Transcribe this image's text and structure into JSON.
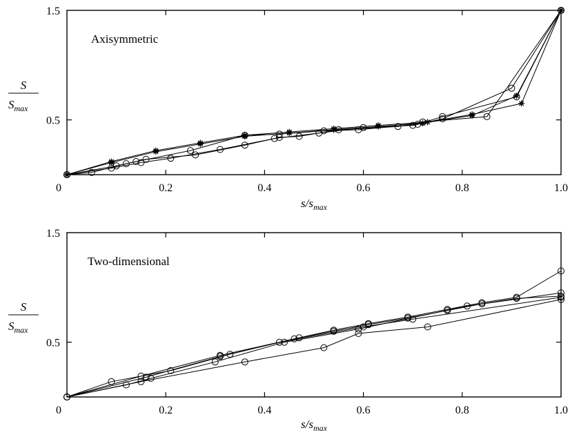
{
  "chart_data": [
    {
      "type": "line",
      "label": "Axisymmetric",
      "xlabel": {
        "main": "s/s",
        "sub": "max"
      },
      "ylabel": {
        "num": "S",
        "den_main": "S",
        "den_sub": "max"
      },
      "xlim": [
        0,
        1.0
      ],
      "ylim": [
        0,
        1.5
      ],
      "xticks": [
        0,
        0.2,
        0.4,
        0.6,
        0.8,
        1.0
      ],
      "xtick_labels": [
        "0",
        "0.2",
        "0.4",
        "0.6",
        "0.8",
        "1.0"
      ],
      "yticks": [
        0,
        0.5,
        1.5
      ],
      "ytick_labels": [
        "0",
        "0.5",
        "1.5"
      ],
      "grid": false,
      "series": [
        {
          "marker": "star",
          "x": [
            0,
            0.09,
            0.18,
            0.27,
            0.36,
            0.45,
            0.54,
            0.63,
            0.73,
            0.82,
            0.92,
            1.0
          ],
          "y": [
            0,
            0.12,
            0.22,
            0.29,
            0.36,
            0.39,
            0.42,
            0.45,
            0.48,
            0.55,
            0.65,
            1.5
          ]
        },
        {
          "marker": "star",
          "x": [
            0,
            0.09,
            0.18,
            0.27,
            0.36,
            0.45,
            0.54,
            0.63,
            0.72,
            0.82,
            0.91,
            1.0
          ],
          "y": [
            0,
            0.11,
            0.21,
            0.28,
            0.35,
            0.38,
            0.41,
            0.44,
            0.47,
            0.54,
            0.72,
            1.5
          ]
        },
        {
          "marker": "circle",
          "x": [
            0,
            0.1,
            0.14,
            0.25,
            0.36,
            0.43,
            0.52,
            0.59,
            0.71,
            0.76,
            0.91,
            1.0
          ],
          "y": [
            0,
            0.08,
            0.12,
            0.22,
            0.36,
            0.37,
            0.4,
            0.41,
            0.46,
            0.53,
            0.71,
            1.5
          ]
        },
        {
          "marker": "circle",
          "x": [
            0,
            0.09,
            0.15,
            0.21,
            0.31,
            0.42,
            0.51,
            0.6,
            0.7,
            0.76,
            0.9,
            1.0
          ],
          "y": [
            0,
            0.06,
            0.11,
            0.15,
            0.23,
            0.33,
            0.38,
            0.43,
            0.45,
            0.51,
            0.79,
            1.5
          ]
        },
        {
          "marker": "circle",
          "x": [
            0,
            0.05,
            0.12,
            0.16,
            0.26,
            0.36,
            0.43,
            0.47,
            0.55,
            0.67,
            0.72,
            0.85,
            1.0
          ],
          "y": [
            0,
            0.02,
            0.1,
            0.14,
            0.18,
            0.27,
            0.34,
            0.35,
            0.41,
            0.44,
            0.48,
            0.53,
            1.5
          ]
        }
      ]
    },
    {
      "type": "line",
      "label": "Two-dimensional",
      "xlabel": {
        "main": "s/s",
        "sub": "max"
      },
      "ylabel": {
        "num": "S",
        "den_main": "S",
        "den_sub": "max"
      },
      "xlim": [
        0,
        1.0
      ],
      "ylim": [
        0,
        1.5
      ],
      "xticks": [
        0,
        0.2,
        0.4,
        0.6,
        0.8,
        1.0
      ],
      "xtick_labels": [
        "0",
        "0.2",
        "0.4",
        "0.6",
        "0.8",
        "1.0"
      ],
      "yticks": [
        0,
        0.5,
        1.5
      ],
      "ytick_labels": [
        "0",
        "0.5",
        "1.5"
      ],
      "grid": false,
      "series": [
        {
          "marker": "circle",
          "x": [
            0,
            0.15,
            0.31,
            0.47,
            0.54,
            0.61,
            0.69,
            0.77,
            0.84,
            0.91,
            1.0
          ],
          "y": [
            0,
            0.19,
            0.38,
            0.54,
            0.61,
            0.67,
            0.73,
            0.8,
            0.86,
            0.91,
            1.15
          ]
        },
        {
          "marker": "circle",
          "x": [
            0,
            0.16,
            0.31,
            0.46,
            0.54,
            0.61,
            0.69,
            0.77,
            0.84,
            0.91,
            1.0
          ],
          "y": [
            0,
            0.18,
            0.37,
            0.53,
            0.6,
            0.66,
            0.72,
            0.79,
            0.85,
            0.9,
            0.92
          ]
        },
        {
          "marker": "circle",
          "x": [
            0,
            0.12,
            0.17,
            0.3,
            0.44,
            0.59,
            0.81,
            1.0
          ],
          "y": [
            0,
            0.11,
            0.17,
            0.32,
            0.5,
            0.62,
            0.83,
            0.95
          ]
        },
        {
          "marker": "circle",
          "x": [
            0,
            0.09,
            0.21,
            0.33,
            0.43,
            0.6,
            0.7,
            1.0
          ],
          "y": [
            0,
            0.14,
            0.24,
            0.39,
            0.5,
            0.64,
            0.71,
            0.91
          ]
        },
        {
          "marker": "circle",
          "x": [
            0,
            0.15,
            0.36,
            0.52,
            0.59,
            0.73,
            1.0
          ],
          "y": [
            0,
            0.14,
            0.32,
            0.45,
            0.58,
            0.64,
            0.89
          ]
        }
      ]
    }
  ]
}
